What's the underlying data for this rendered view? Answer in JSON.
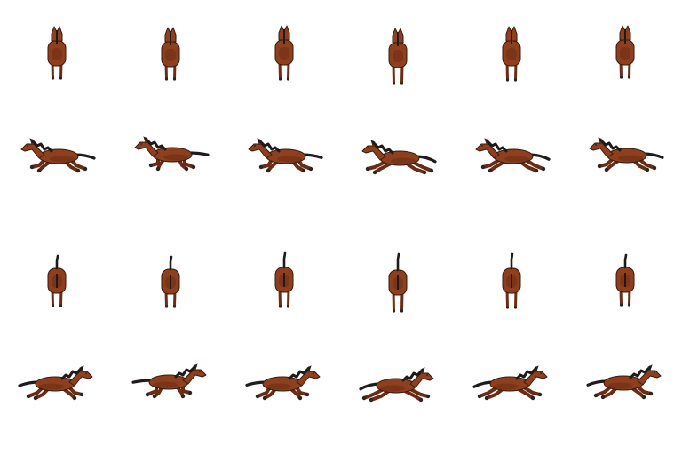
{
  "sprite_sheet": {
    "subject": "horse",
    "animation": "gallop",
    "rows": [
      {
        "direction": "up",
        "frames": 6
      },
      {
        "direction": "left",
        "frames": 6
      },
      {
        "direction": "down",
        "frames": 6
      },
      {
        "direction": "right",
        "frames": 6
      }
    ],
    "colors": {
      "coat": "#8e3f1e",
      "coat_shade": "#6a2c14",
      "outline": "#3a1a0c",
      "mane": "#1f1b1a",
      "hoof": "#2a2522",
      "background": "#ffffff"
    }
  }
}
